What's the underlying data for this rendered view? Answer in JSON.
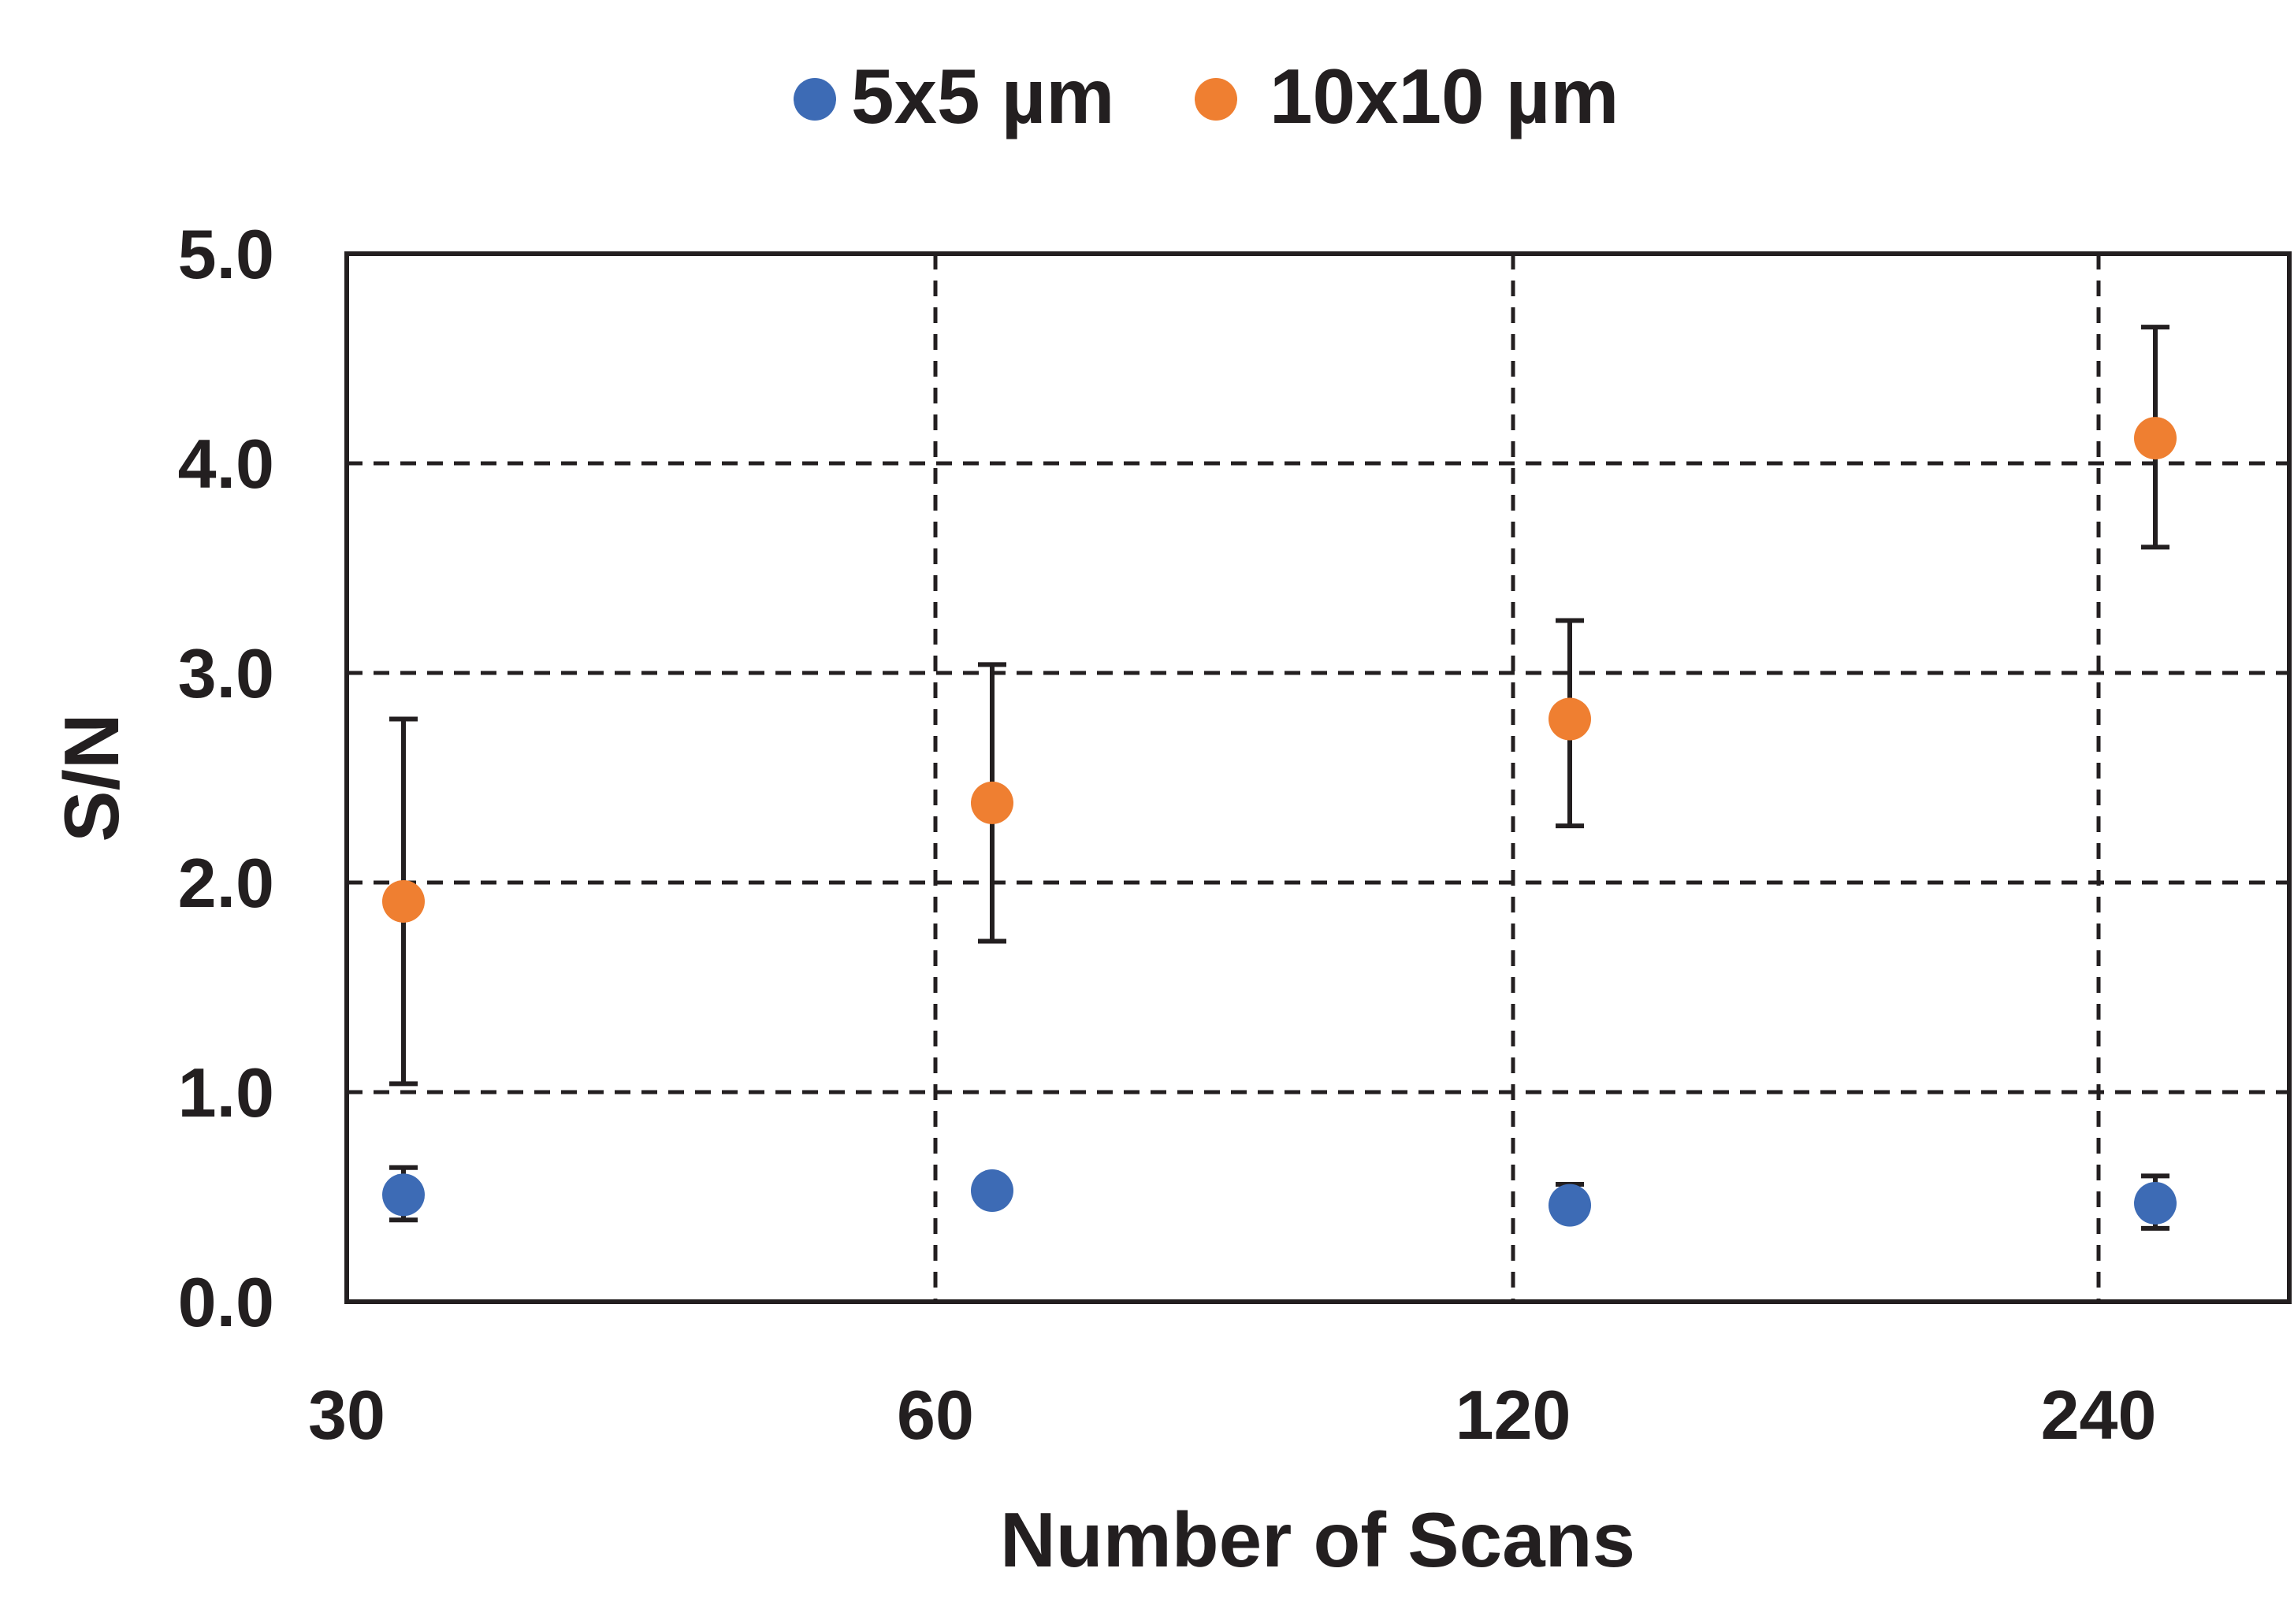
{
  "chart_data": {
    "type": "scatter",
    "title": "",
    "xlabel": "Number of Scans",
    "ylabel": "S/N",
    "x_categories": [
      "30",
      "60",
      "120",
      "240"
    ],
    "y_ticks": [
      "0.0",
      "1.0",
      "2.0",
      "3.0",
      "4.0",
      "5.0"
    ],
    "ylim": [
      0,
      5
    ],
    "grid": "dashed, both axes",
    "legend_position": "top-center",
    "series": [
      {
        "name": "5x5 µm",
        "color": "#3d6bb5",
        "points": [
          {
            "x": 30,
            "y": 0.51,
            "err_low": 0.39,
            "err_high": 0.64
          },
          {
            "x": 60,
            "y": 0.53,
            "err_low": null,
            "err_high": null
          },
          {
            "x": 120,
            "y": 0.46,
            "err_low": null,
            "err_high": 0.56
          },
          {
            "x": 240,
            "y": 0.47,
            "err_low": 0.35,
            "err_high": 0.6
          }
        ]
      },
      {
        "name": "10x10 µm",
        "color": "#ef7f31",
        "points": [
          {
            "x": 30,
            "y": 1.91,
            "err_low": 1.04,
            "err_high": 2.78
          },
          {
            "x": 60,
            "y": 2.38,
            "err_low": 1.72,
            "err_high": 3.04
          },
          {
            "x": 120,
            "y": 2.78,
            "err_low": 2.27,
            "err_high": 3.25
          },
          {
            "x": 240,
            "y": 4.12,
            "err_low": 3.6,
            "err_high": 4.65
          }
        ]
      }
    ]
  }
}
